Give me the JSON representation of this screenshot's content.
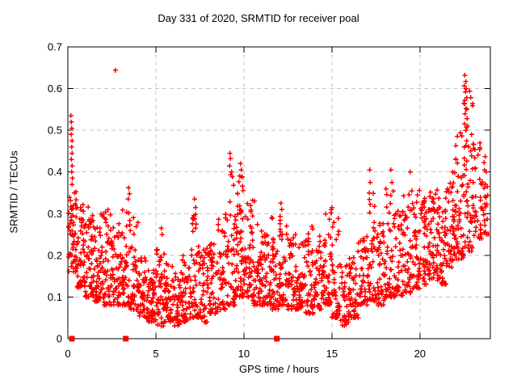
{
  "page": {
    "background": "#ffffff",
    "text_color": "#000000"
  },
  "chart_data": {
    "type": "scatter",
    "title": "Day 331 of 2020, SRMTID for receiver poal",
    "xlabel": "GPS time / hours",
    "ylabel": "SRMTID / TECUs",
    "xlim": [
      0,
      24
    ],
    "ylim": [
      0,
      0.7
    ],
    "x_ticks": [
      0,
      5,
      10,
      15,
      20
    ],
    "x_tick_labels": [
      "0",
      "5",
      "10",
      "15",
      "20"
    ],
    "y_ticks": [
      0,
      0.1,
      0.2,
      0.3,
      0.4,
      0.5,
      0.6,
      0.7
    ],
    "y_tick_labels": [
      "0",
      "0.1",
      "0.2",
      "0.3",
      "0.4",
      "0.5",
      "0.6",
      "0.7"
    ],
    "grid": true,
    "legend": "none",
    "marker": {
      "shape": "plus",
      "color": "#ff0000",
      "size": 7
    },
    "colors": {
      "marker": "#ff0000",
      "grid": "#c4c4c4",
      "axis": "#000000",
      "background": "#ffffff"
    },
    "density_bins_note": "dense scatter approximated per 0.5-hour bin: [start_hour, y_min, y_max, point_count, skew_exponent] (points skew toward y_min)",
    "density_bins": [
      [
        0.0,
        0.16,
        0.36,
        55,
        1.5
      ],
      [
        0.5,
        0.12,
        0.33,
        55,
        1.7
      ],
      [
        1.0,
        0.1,
        0.32,
        55,
        1.7
      ],
      [
        1.5,
        0.09,
        0.3,
        50,
        1.7
      ],
      [
        2.0,
        0.08,
        0.31,
        50,
        1.8
      ],
      [
        2.5,
        0.08,
        0.28,
        45,
        1.8
      ],
      [
        3.0,
        0.08,
        0.33,
        48,
        1.8
      ],
      [
        3.5,
        0.07,
        0.3,
        45,
        1.8
      ],
      [
        4.0,
        0.05,
        0.2,
        48,
        1.5
      ],
      [
        4.5,
        0.04,
        0.17,
        48,
        1.5
      ],
      [
        5.0,
        0.03,
        0.22,
        48,
        1.7
      ],
      [
        5.5,
        0.04,
        0.19,
        48,
        1.7
      ],
      [
        6.0,
        0.03,
        0.16,
        48,
        1.5
      ],
      [
        6.5,
        0.04,
        0.2,
        48,
        1.6
      ],
      [
        7.0,
        0.05,
        0.3,
        46,
        2.0
      ],
      [
        7.5,
        0.04,
        0.22,
        44,
        1.7
      ],
      [
        8.0,
        0.06,
        0.24,
        44,
        1.7
      ],
      [
        8.5,
        0.07,
        0.3,
        46,
        2.0
      ],
      [
        9.0,
        0.08,
        0.4,
        46,
        2.1
      ],
      [
        9.5,
        0.1,
        0.4,
        58,
        1.5
      ],
      [
        10.0,
        0.1,
        0.34,
        52,
        1.6
      ],
      [
        10.5,
        0.08,
        0.28,
        46,
        1.6
      ],
      [
        11.0,
        0.08,
        0.26,
        46,
        1.6
      ],
      [
        11.5,
        0.07,
        0.3,
        46,
        1.8
      ],
      [
        12.0,
        0.08,
        0.31,
        46,
        1.8
      ],
      [
        12.5,
        0.07,
        0.25,
        46,
        1.6
      ],
      [
        13.0,
        0.07,
        0.24,
        46,
        1.6
      ],
      [
        13.5,
        0.06,
        0.27,
        46,
        1.7
      ],
      [
        14.0,
        0.07,
        0.25,
        46,
        1.6
      ],
      [
        14.5,
        0.08,
        0.31,
        46,
        1.8
      ],
      [
        15.0,
        0.05,
        0.29,
        44,
        1.9
      ],
      [
        15.5,
        0.03,
        0.18,
        42,
        1.5
      ],
      [
        16.0,
        0.05,
        0.21,
        42,
        1.5
      ],
      [
        16.5,
        0.08,
        0.28,
        44,
        1.6
      ],
      [
        17.0,
        0.09,
        0.36,
        46,
        1.9
      ],
      [
        17.5,
        0.08,
        0.28,
        46,
        1.6
      ],
      [
        18.0,
        0.1,
        0.37,
        46,
        1.9
      ],
      [
        18.5,
        0.1,
        0.32,
        46,
        1.6
      ],
      [
        19.0,
        0.11,
        0.36,
        46,
        1.6
      ],
      [
        19.5,
        0.12,
        0.38,
        46,
        1.6
      ],
      [
        20.0,
        0.13,
        0.34,
        50,
        1.4
      ],
      [
        20.5,
        0.14,
        0.36,
        50,
        1.4
      ],
      [
        21.0,
        0.13,
        0.34,
        50,
        1.4
      ],
      [
        21.5,
        0.17,
        0.4,
        50,
        1.4
      ],
      [
        22.0,
        0.19,
        0.5,
        50,
        1.5
      ],
      [
        22.5,
        0.21,
        0.6,
        52,
        1.4
      ],
      [
        23.0,
        0.24,
        0.47,
        40,
        1.4
      ],
      [
        23.5,
        0.25,
        0.45,
        24,
        1.4
      ]
    ],
    "x_max_data": 23.9,
    "notable_points": [
      [
        0.18,
        0.535
      ],
      [
        0.2,
        0.52
      ],
      [
        0.22,
        0.505
      ],
      [
        0.19,
        0.49
      ],
      [
        0.24,
        0.475
      ],
      [
        0.21,
        0.46
      ],
      [
        0.23,
        0.445
      ],
      [
        0.2,
        0.43
      ],
      [
        0.25,
        0.415
      ],
      [
        0.22,
        0.4
      ],
      [
        0.26,
        0.385
      ],
      [
        0.24,
        0.37
      ],
      [
        2.7,
        0.644
      ],
      [
        3.45,
        0.362
      ],
      [
        3.5,
        0.348
      ],
      [
        3.42,
        0.335
      ],
      [
        5.3,
        0.265
      ],
      [
        5.35,
        0.25
      ],
      [
        7.2,
        0.335
      ],
      [
        7.25,
        0.315
      ],
      [
        7.15,
        0.295
      ],
      [
        9.2,
        0.445
      ],
      [
        9.24,
        0.432
      ],
      [
        9.18,
        0.415
      ],
      [
        9.3,
        0.4
      ],
      [
        9.8,
        0.42
      ],
      [
        9.85,
        0.405
      ],
      [
        9.75,
        0.39
      ],
      [
        10.6,
        0.33
      ],
      [
        12.1,
        0.325
      ],
      [
        12.15,
        0.31
      ],
      [
        15.0,
        0.315
      ],
      [
        17.15,
        0.405
      ],
      [
        17.18,
        0.375
      ],
      [
        17.12,
        0.35
      ],
      [
        18.35,
        0.405
      ],
      [
        18.4,
        0.375
      ],
      [
        19.45,
        0.4
      ],
      [
        22.55,
        0.632
      ],
      [
        22.6,
        0.617
      ],
      [
        22.52,
        0.607
      ],
      [
        22.63,
        0.6
      ],
      [
        22.58,
        0.592
      ],
      [
        22.66,
        0.578
      ],
      [
        22.5,
        0.565
      ],
      [
        22.62,
        0.552
      ],
      [
        22.56,
        0.54
      ],
      [
        22.68,
        0.528
      ],
      [
        22.54,
        0.515
      ],
      [
        22.6,
        0.5
      ],
      [
        23.7,
        0.437
      ],
      [
        23.75,
        0.4
      ]
    ],
    "axis_markers": {
      "shape": "filled-square",
      "color": "#ff0000",
      "size": 7,
      "y": 0,
      "x": [
        0.23,
        3.29,
        11.87
      ]
    }
  }
}
